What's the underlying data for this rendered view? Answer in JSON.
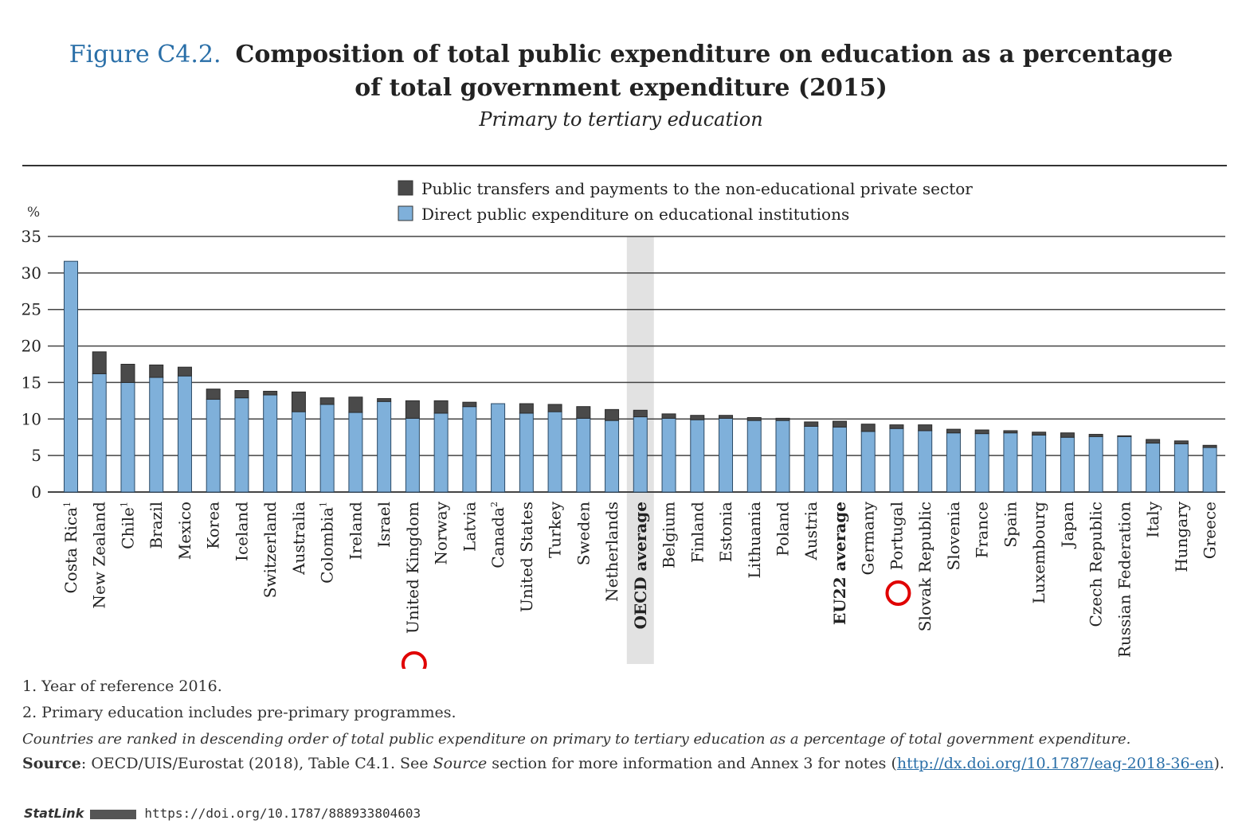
{
  "header": {
    "figure_number": "Figure C4.2.",
    "title_line1": "Composition of total public expenditure on education as a percentage",
    "title_line2": "of total government expenditure (2015)",
    "subtitle": "Primary to tertiary education"
  },
  "chart_data": {
    "type": "bar",
    "stacked": true,
    "ylabel": "%",
    "ylim": [
      0,
      35
    ],
    "yticks": [
      0,
      5,
      10,
      15,
      20,
      25,
      30,
      35
    ],
    "grid": true,
    "legend_position": "top-center",
    "highlighted_category": "OECD average",
    "categories": [
      "Costa Rica",
      "New Zealand",
      "Chile",
      "Brazil",
      "Mexico",
      "Korea",
      "Iceland",
      "Switzerland",
      "Australia",
      "Colombia",
      "Ireland",
      "Israel",
      "United Kingdom",
      "Norway",
      "Latvia",
      "Canada",
      "United States",
      "Turkey",
      "Sweden",
      "Netherlands",
      "OECD average",
      "Belgium",
      "Finland",
      "Estonia",
      "Lithuania",
      "Poland",
      "Austria",
      "EU22 average",
      "Germany",
      "Portugal",
      "Slovak Republic",
      "Slovenia",
      "France",
      "Spain",
      "Luxembourg",
      "Japan",
      "Czech Republic",
      "Russian Federation",
      "Italy",
      "Hungary",
      "Greece"
    ],
    "superscripts": {
      "Costa Rica": "1",
      "Chile": "1",
      "Colombia": "1",
      "Canada": "2"
    },
    "bold_categories": [
      "OECD average",
      "EU22 average"
    ],
    "series": [
      {
        "name": "Direct public expenditure on educational institutions",
        "color": "#7fb0da",
        "values": [
          31.6,
          16.2,
          15.0,
          15.7,
          15.9,
          12.7,
          12.9,
          13.3,
          11.0,
          12.0,
          10.9,
          12.4,
          10.1,
          10.8,
          11.7,
          12.1,
          10.8,
          11.0,
          10.1,
          9.8,
          10.3,
          10.1,
          9.9,
          10.1,
          9.8,
          9.8,
          9.0,
          8.9,
          8.3,
          8.7,
          8.4,
          8.1,
          8.0,
          8.1,
          7.8,
          7.5,
          7.6,
          7.6,
          6.7,
          6.6,
          6.1
        ]
      },
      {
        "name": "Public transfers and payments to the non-educational private sector",
        "color": "#4a4a4a",
        "values": [
          0.0,
          3.0,
          2.5,
          1.7,
          1.2,
          1.4,
          1.0,
          0.5,
          2.7,
          0.9,
          2.1,
          0.4,
          2.4,
          1.7,
          0.6,
          0.0,
          1.3,
          1.0,
          1.6,
          1.5,
          0.9,
          0.6,
          0.6,
          0.4,
          0.4,
          0.3,
          0.6,
          0.8,
          1.0,
          0.5,
          0.8,
          0.5,
          0.5,
          0.3,
          0.4,
          0.6,
          0.3,
          0.1,
          0.5,
          0.4,
          0.3
        ]
      }
    ]
  },
  "annotations": {
    "markers": [
      "United Kingdom",
      "Portugal"
    ],
    "marker_color": "#e00000"
  },
  "notes": {
    "note1": "1. Year of reference 2016.",
    "note2": "2. Primary education includes pre-primary programmes.",
    "ranking": "Countries are ranked in descending order of total public expenditure on primary to tertiary education as a percentage of total government expenditure.",
    "source_label": "Source",
    "source_text": ": OECD/UIS/Eurostat (2018), Table C4.1. See ",
    "source_italic": "Source",
    "source_text2": " section for more information and Annex 3 for notes (",
    "source_link": "http://dx.doi.org/10.1787/eag-2018-36-en",
    "source_end": ")."
  },
  "statlink": {
    "label": "StatLink",
    "url": "https://doi.org/10.1787/888933804603"
  }
}
